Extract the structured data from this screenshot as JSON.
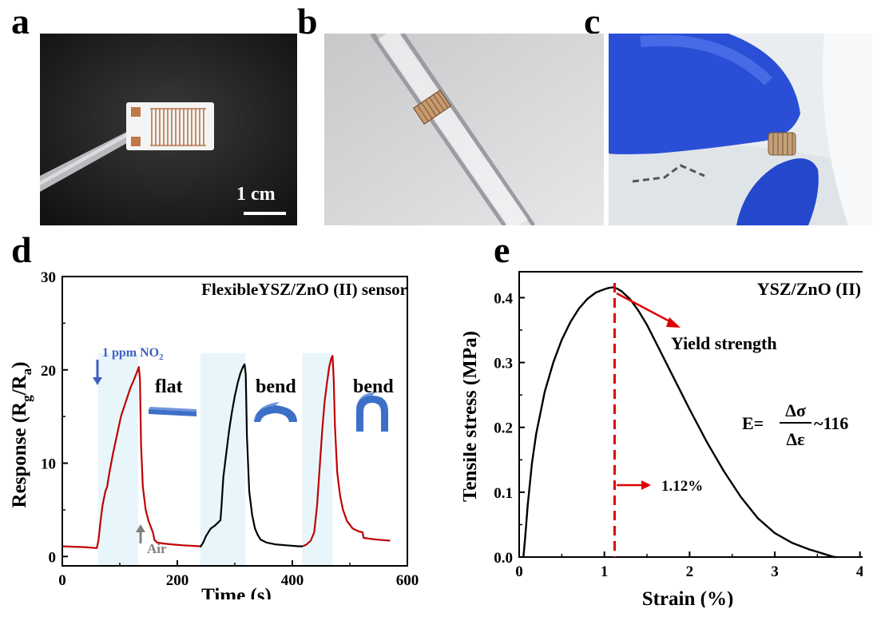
{
  "panel_labels": {
    "a": "a",
    "b": "b",
    "c": "c",
    "d": "d",
    "e": "e"
  },
  "photo_a": {
    "scale_bar_label": "1 cm"
  },
  "colors": {
    "red_curve": "#c00000",
    "black_curve": "#000000",
    "highlight": "#e8f6fc",
    "nitrogen_label": "#4060c0",
    "air_label": "#808080",
    "dashed_line": "#e00000",
    "annotation_arrow": "#e00000",
    "sensor_blue": "#3d6fc8"
  },
  "chart_data": [
    {
      "type": "line",
      "panel": "d",
      "title": "FlexibleYSZ/ZnO (II) sensor",
      "xlabel": "Time (s)",
      "ylabel_main": "Response (R",
      "ylabel_sub_g": "g",
      "ylabel_mid": "/R",
      "ylabel_sub_a": "a",
      "ylabel_end": ")",
      "xlim": [
        0,
        600
      ],
      "ylim": [
        -1,
        30
      ],
      "xticks": [
        0,
        200,
        400,
        600
      ],
      "yticks": [
        0,
        10,
        20,
        30
      ],
      "annotations": {
        "no2_main": "1 ppm NO",
        "no2_sub": "2",
        "air": "Air",
        "state1": "flat",
        "state2": "bend",
        "state3": "bend"
      },
      "highlight_regions": [
        [
          62,
          132
        ],
        [
          240,
          318
        ],
        [
          417,
          470
        ]
      ],
      "series": [
        {
          "name": "flat",
          "color": "#c00000",
          "x": [
            0,
            20,
            40,
            60,
            63,
            66,
            70,
            75,
            78,
            82,
            88,
            95,
            102,
            110,
            118,
            125,
            130,
            133,
            135,
            137,
            140,
            145,
            150,
            155,
            158,
            160,
            165,
            175,
            190,
            210,
            240
          ],
          "y": [
            1.1,
            1.05,
            1.0,
            0.9,
            1.8,
            3.5,
            5.5,
            7.0,
            7.5,
            9.0,
            11,
            13,
            15,
            16.5,
            18,
            19,
            19.8,
            20.3,
            19.0,
            12.0,
            7.5,
            5.0,
            3.8,
            3.0,
            2.5,
            1.8,
            1.5,
            1.4,
            1.3,
            1.2,
            1.1
          ]
        },
        {
          "name": "bend 1",
          "color": "#000000",
          "x": [
            240,
            245,
            250,
            258,
            265,
            272,
            275,
            277,
            280,
            285,
            290,
            295,
            300,
            305,
            310,
            314,
            317,
            319,
            321,
            325,
            330,
            335,
            340,
            345,
            355,
            370,
            390,
            410,
            418
          ],
          "y": [
            1.0,
            1.5,
            2.2,
            3.0,
            3.3,
            3.7,
            3.9,
            5.5,
            8.5,
            11,
            13.5,
            15.5,
            17.2,
            18.6,
            19.7,
            20.3,
            20.6,
            19.5,
            13.0,
            7.0,
            4.5,
            3.0,
            2.3,
            1.8,
            1.5,
            1.3,
            1.2,
            1.1,
            1.1
          ]
        },
        {
          "name": "bend 2",
          "color": "#c00000",
          "x": [
            418,
            425,
            432,
            438,
            443,
            448,
            452,
            456,
            460,
            464,
            468,
            470,
            472,
            474,
            478,
            483,
            488,
            495,
            505,
            515,
            522,
            524,
            535,
            550,
            570
          ],
          "y": [
            1.1,
            1.3,
            1.7,
            2.6,
            5.5,
            10,
            13.5,
            16.5,
            18.5,
            20.3,
            21.3,
            21.5,
            19.0,
            14.0,
            9.0,
            6.5,
            5.0,
            3.8,
            3.0,
            2.7,
            2.6,
            2.0,
            1.9,
            1.8,
            1.7
          ]
        }
      ]
    },
    {
      "type": "line",
      "panel": "e",
      "title": "YSZ/ZnO (II)",
      "xlabel": "Strain (%)",
      "ylabel": "Tensile stress (MPa)",
      "xlim": [
        0,
        4.2
      ],
      "ylim": [
        0,
        0.44
      ],
      "xticks": [
        0,
        1,
        2,
        3,
        4
      ],
      "yticks": [
        0.0,
        0.1,
        0.2,
        0.3,
        0.4
      ],
      "yield_strain": 1.12,
      "annotations": {
        "yield": "Yield strength",
        "strain_value": "1.12%",
        "modulus_prefix": "E=",
        "modulus_num": "Δσ",
        "modulus_den": "Δε",
        "modulus_value": "~116"
      },
      "series": [
        {
          "name": "stress-strain",
          "color": "#000000",
          "x": [
            0.05,
            0.07,
            0.1,
            0.15,
            0.2,
            0.3,
            0.4,
            0.5,
            0.6,
            0.7,
            0.8,
            0.9,
            1.0,
            1.05,
            1.1,
            1.15,
            1.2,
            1.3,
            1.4,
            1.5,
            1.6,
            1.8,
            2.0,
            2.2,
            2.4,
            2.6,
            2.8,
            3.0,
            3.2,
            3.4,
            3.6,
            3.7,
            3.72
          ],
          "y": [
            0.0,
            0.03,
            0.08,
            0.145,
            0.19,
            0.255,
            0.3,
            0.335,
            0.362,
            0.383,
            0.398,
            0.408,
            0.413,
            0.415,
            0.416,
            0.414,
            0.41,
            0.398,
            0.38,
            0.358,
            0.332,
            0.28,
            0.228,
            0.178,
            0.133,
            0.093,
            0.06,
            0.037,
            0.022,
            0.012,
            0.004,
            0.0,
            0.0
          ]
        }
      ]
    }
  ]
}
